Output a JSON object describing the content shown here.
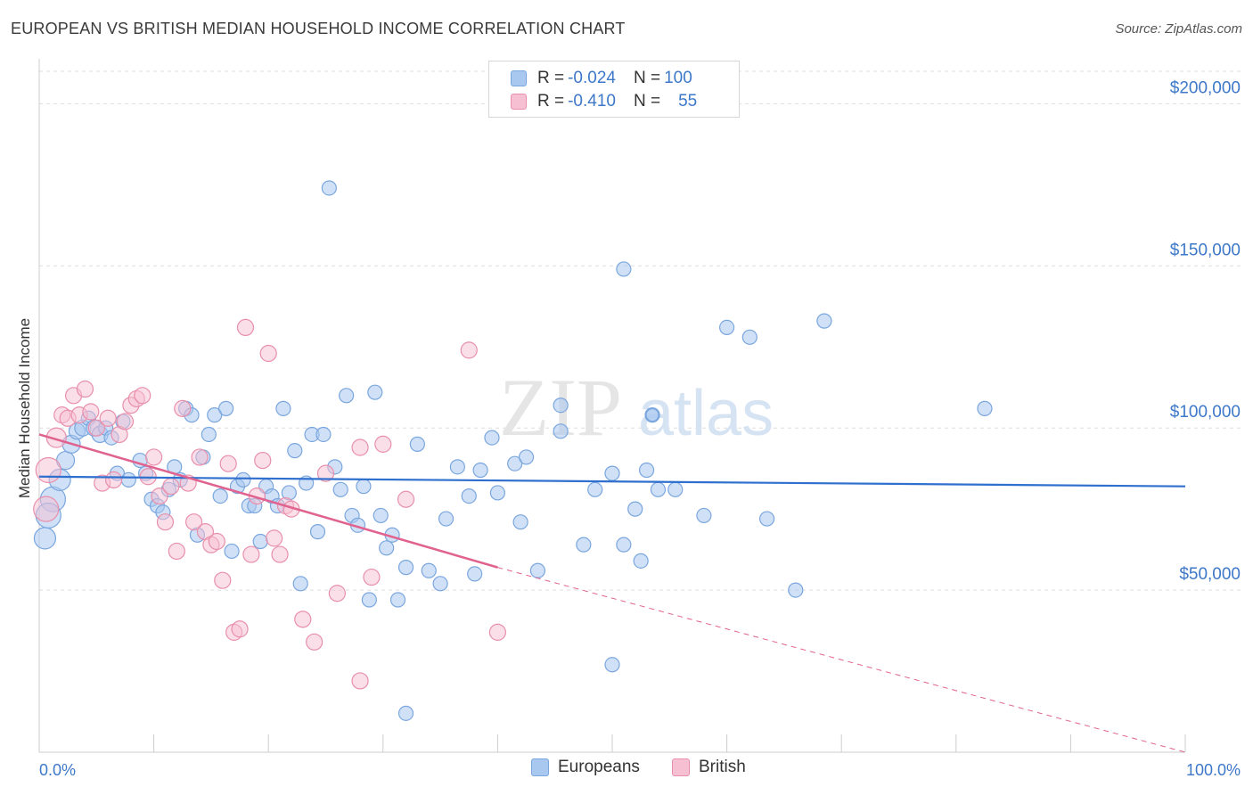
{
  "header": {
    "title": "EUROPEAN VS BRITISH MEDIAN HOUSEHOLD INCOME CORRELATION CHART",
    "source": "Source: ZipAtlas.com"
  },
  "watermark": {
    "zip": "ZIP",
    "atlas": "atlas"
  },
  "legend_top": {
    "rows": [
      {
        "r_label": "R = ",
        "r_value": "-0.024",
        "n_label": "N = ",
        "n_value": "100",
        "color": "#a9c8f0",
        "border": "#7aa6de"
      },
      {
        "r_label": "R = ",
        "r_value": "-0.410",
        "n_label": "N = ",
        "n_value": "55",
        "color": "#f7c0d2",
        "border": "#e88fab"
      }
    ]
  },
  "legend_bottom": {
    "europeans": "Europeans",
    "british": "British"
  },
  "colors": {
    "europeans_fill": "#a9c8f0",
    "europeans_stroke": "#7aa6de",
    "europeans_line": "#2f6fce",
    "british_fill": "#f7c0d2",
    "british_stroke": "#e88fab",
    "british_line": "#e0628f",
    "axis_text": "#3d78c9",
    "grid": "#dddddd"
  },
  "chart_data": {
    "type": "scatter",
    "title": "EUROPEAN VS BRITISH MEDIAN HOUSEHOLD INCOME CORRELATION CHART",
    "xlabel": "",
    "ylabel": "Median Household Income",
    "xlim": [
      0,
      100
    ],
    "ylim": [
      0,
      210000
    ],
    "x_tick_labels": [
      "0.0%",
      "100.0%"
    ],
    "y_ticks": [
      {
        "value": 50000,
        "label": "$50,000"
      },
      {
        "value": 100000,
        "label": "$100,000"
      },
      {
        "value": 150000,
        "label": "$150,000"
      },
      {
        "value": 200000,
        "label": "$200,000"
      }
    ],
    "grid": true,
    "legend_position": "top-center",
    "series": [
      {
        "name": "Europeans",
        "r": -0.024,
        "n": 100,
        "trend": {
          "x": [
            0,
            100
          ],
          "y": [
            85000,
            82000
          ]
        },
        "points": [
          [
            0.5,
            66000,
            12
          ],
          [
            1.2,
            78000,
            14
          ],
          [
            1.8,
            84000,
            12
          ],
          [
            0.8,
            73000,
            14
          ],
          [
            2.3,
            90000,
            10
          ],
          [
            2.8,
            95000,
            10
          ],
          [
            3.3,
            99000,
            9
          ],
          [
            3.8,
            100000,
            9
          ],
          [
            4.3,
            103000,
            8
          ],
          [
            4.8,
            100000,
            9
          ],
          [
            5.3,
            98000,
            9
          ],
          [
            5.8,
            100000,
            8
          ],
          [
            6.3,
            97000,
            8
          ],
          [
            6.8,
            86000,
            8
          ],
          [
            7.3,
            102000,
            8
          ],
          [
            7.8,
            84000,
            8
          ],
          [
            8.8,
            90000,
            8
          ],
          [
            9.3,
            86000,
            8
          ],
          [
            9.8,
            78000,
            8
          ],
          [
            10.3,
            76000,
            8
          ],
          [
            10.8,
            74000,
            8
          ],
          [
            11.3,
            81000,
            8
          ],
          [
            11.8,
            88000,
            8
          ],
          [
            12.3,
            84000,
            8
          ],
          [
            12.8,
            106000,
            8
          ],
          [
            13.3,
            104000,
            8
          ],
          [
            13.8,
            67000,
            8
          ],
          [
            14.3,
            91000,
            8
          ],
          [
            14.8,
            98000,
            8
          ],
          [
            15.3,
            104000,
            8
          ],
          [
            15.8,
            79000,
            8
          ],
          [
            16.3,
            106000,
            8
          ],
          [
            16.8,
            62000,
            8
          ],
          [
            17.3,
            82000,
            8
          ],
          [
            17.8,
            84000,
            8
          ],
          [
            18.3,
            76000,
            8
          ],
          [
            18.8,
            76000,
            8
          ],
          [
            19.3,
            65000,
            8
          ],
          [
            19.8,
            82000,
            8
          ],
          [
            20.3,
            79000,
            8
          ],
          [
            20.8,
            76000,
            8
          ],
          [
            21.3,
            106000,
            8
          ],
          [
            21.8,
            80000,
            8
          ],
          [
            22.3,
            93000,
            8
          ],
          [
            22.8,
            52000,
            8
          ],
          [
            23.3,
            83000,
            8
          ],
          [
            23.8,
            98000,
            8
          ],
          [
            24.3,
            68000,
            8
          ],
          [
            24.8,
            98000,
            8
          ],
          [
            25.3,
            174000,
            8
          ],
          [
            25.8,
            88000,
            8
          ],
          [
            26.3,
            81000,
            8
          ],
          [
            26.8,
            110000,
            8
          ],
          [
            27.3,
            73000,
            8
          ],
          [
            27.8,
            70000,
            8
          ],
          [
            28.3,
            82000,
            8
          ],
          [
            28.8,
            47000,
            8
          ],
          [
            29.3,
            111000,
            8
          ],
          [
            29.8,
            73000,
            8
          ],
          [
            30.3,
            63000,
            8
          ],
          [
            30.8,
            67000,
            8
          ],
          [
            31.3,
            47000,
            8
          ],
          [
            32.0,
            57000,
            8
          ],
          [
            32.0,
            12000,
            8
          ],
          [
            33.0,
            95000,
            8
          ],
          [
            34.0,
            56000,
            8
          ],
          [
            35.0,
            52000,
            8
          ],
          [
            35.5,
            72000,
            8
          ],
          [
            36.5,
            88000,
            8
          ],
          [
            37.5,
            79000,
            8
          ],
          [
            38.0,
            55000,
            8
          ],
          [
            38.5,
            87000,
            8
          ],
          [
            39.5,
            97000,
            8
          ],
          [
            40.0,
            80000,
            8
          ],
          [
            41.5,
            89000,
            8
          ],
          [
            42.0,
            71000,
            8
          ],
          [
            42.5,
            91000,
            8
          ],
          [
            43.5,
            56000,
            8
          ],
          [
            45.5,
            99000,
            8
          ],
          [
            45.5,
            107000,
            8
          ],
          [
            47.5,
            64000,
            8
          ],
          [
            48.5,
            81000,
            8
          ],
          [
            50.0,
            27000,
            8
          ],
          [
            50.0,
            86000,
            8
          ],
          [
            51.0,
            149000,
            8
          ],
          [
            51.0,
            64000,
            8
          ],
          [
            52.0,
            75000,
            8
          ],
          [
            52.5,
            59000,
            8
          ],
          [
            53.0,
            87000,
            8
          ],
          [
            53.5,
            104000,
            8
          ],
          [
            54.0,
            81000,
            8
          ],
          [
            55.5,
            81000,
            8
          ],
          [
            58.0,
            73000,
            8
          ],
          [
            60.0,
            131000,
            8
          ],
          [
            62.0,
            128000,
            8
          ],
          [
            63.5,
            72000,
            8
          ],
          [
            66.0,
            50000,
            8
          ],
          [
            68.5,
            133000,
            8
          ],
          [
            82.5,
            106000,
            8
          ],
          [
            53.5,
            104000,
            7
          ]
        ]
      },
      {
        "name": "British",
        "r": -0.41,
        "n": 55,
        "trend": {
          "x": [
            0,
            40
          ],
          "y": [
            98000,
            57000
          ]
        },
        "trend_dashed": {
          "x": [
            40,
            100
          ],
          "y": [
            57000,
            0
          ]
        },
        "points": [
          [
            0.8,
            87000,
            14
          ],
          [
            1.5,
            97000,
            11
          ],
          [
            0.6,
            75000,
            14
          ],
          [
            2.0,
            104000,
            9
          ],
          [
            2.5,
            103000,
            9
          ],
          [
            3.0,
            110000,
            9
          ],
          [
            3.5,
            104000,
            9
          ],
          [
            4.0,
            112000,
            9
          ],
          [
            4.5,
            105000,
            9
          ],
          [
            5.0,
            100000,
            9
          ],
          [
            5.5,
            83000,
            9
          ],
          [
            6.0,
            103000,
            9
          ],
          [
            6.5,
            84000,
            9
          ],
          [
            7.0,
            98000,
            9
          ],
          [
            7.5,
            102000,
            9
          ],
          [
            8.0,
            107000,
            9
          ],
          [
            8.5,
            109000,
            9
          ],
          [
            9.0,
            110000,
            9
          ],
          [
            9.5,
            85000,
            9
          ],
          [
            10.0,
            91000,
            9
          ],
          [
            10.5,
            79000,
            9
          ],
          [
            11.0,
            71000,
            9
          ],
          [
            11.5,
            82000,
            9
          ],
          [
            12.0,
            62000,
            9
          ],
          [
            12.5,
            106000,
            9
          ],
          [
            13.0,
            83000,
            9
          ],
          [
            13.5,
            71000,
            9
          ],
          [
            14.0,
            91000,
            9
          ],
          [
            14.5,
            68000,
            9
          ],
          [
            15.0,
            64000,
            9
          ],
          [
            15.5,
            65000,
            9
          ],
          [
            16.0,
            53000,
            9
          ],
          [
            16.5,
            89000,
            9
          ],
          [
            17.0,
            37000,
            9
          ],
          [
            17.5,
            38000,
            9
          ],
          [
            18.0,
            131000,
            9
          ],
          [
            18.5,
            61000,
            9
          ],
          [
            19.0,
            79000,
            9
          ],
          [
            19.5,
            90000,
            9
          ],
          [
            20.0,
            123000,
            9
          ],
          [
            20.5,
            66000,
            9
          ],
          [
            21.0,
            61000,
            9
          ],
          [
            21.5,
            76000,
            9
          ],
          [
            22.0,
            75000,
            9
          ],
          [
            23.0,
            41000,
            9
          ],
          [
            24.0,
            34000,
            9
          ],
          [
            25.0,
            86000,
            9
          ],
          [
            26.0,
            49000,
            9
          ],
          [
            28.0,
            94000,
            9
          ],
          [
            28.0,
            22000,
            9
          ],
          [
            29.0,
            54000,
            9
          ],
          [
            30.0,
            95000,
            9
          ],
          [
            32.0,
            78000,
            9
          ],
          [
            37.5,
            124000,
            9
          ],
          [
            40.0,
            37000,
            9
          ]
        ]
      }
    ]
  }
}
